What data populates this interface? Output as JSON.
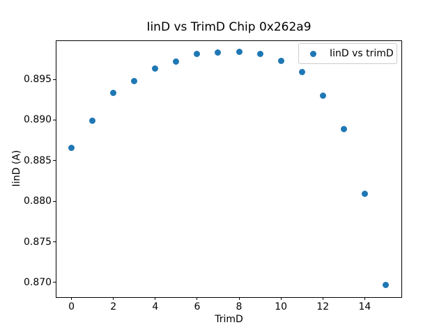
{
  "figure": {
    "background": "#ffffff",
    "text_color": "#000000",
    "legend_border_color": "#cccccc"
  },
  "chart_data": {
    "type": "scatter",
    "title": "IinD vs TrimD Chip 0x262a9",
    "xlabel": "TrimD",
    "ylabel": "IinD (A)",
    "legend": {
      "label": "IinD vs trimD",
      "position": "upper right"
    },
    "marker_color": "#1f77b4",
    "grid": false,
    "x": [
      0,
      1,
      2,
      3,
      4,
      5,
      6,
      7,
      8,
      9,
      10,
      11,
      12,
      13,
      14,
      15
    ],
    "y": [
      0.8866,
      0.8899,
      0.8933,
      0.8948,
      0.8963,
      0.8972,
      0.8981,
      0.8983,
      0.8984,
      0.8981,
      0.8973,
      0.8959,
      0.893,
      0.8889,
      0.8809,
      0.8697
    ],
    "xlim": [
      -0.75,
      15.75
    ],
    "ylim": [
      0.8682,
      0.8998
    ],
    "xticks": [
      0,
      2,
      4,
      6,
      8,
      10,
      12,
      14
    ],
    "ytick_labels": [
      "0.870",
      "0.875",
      "0.880",
      "0.885",
      "0.890",
      "0.895"
    ]
  }
}
